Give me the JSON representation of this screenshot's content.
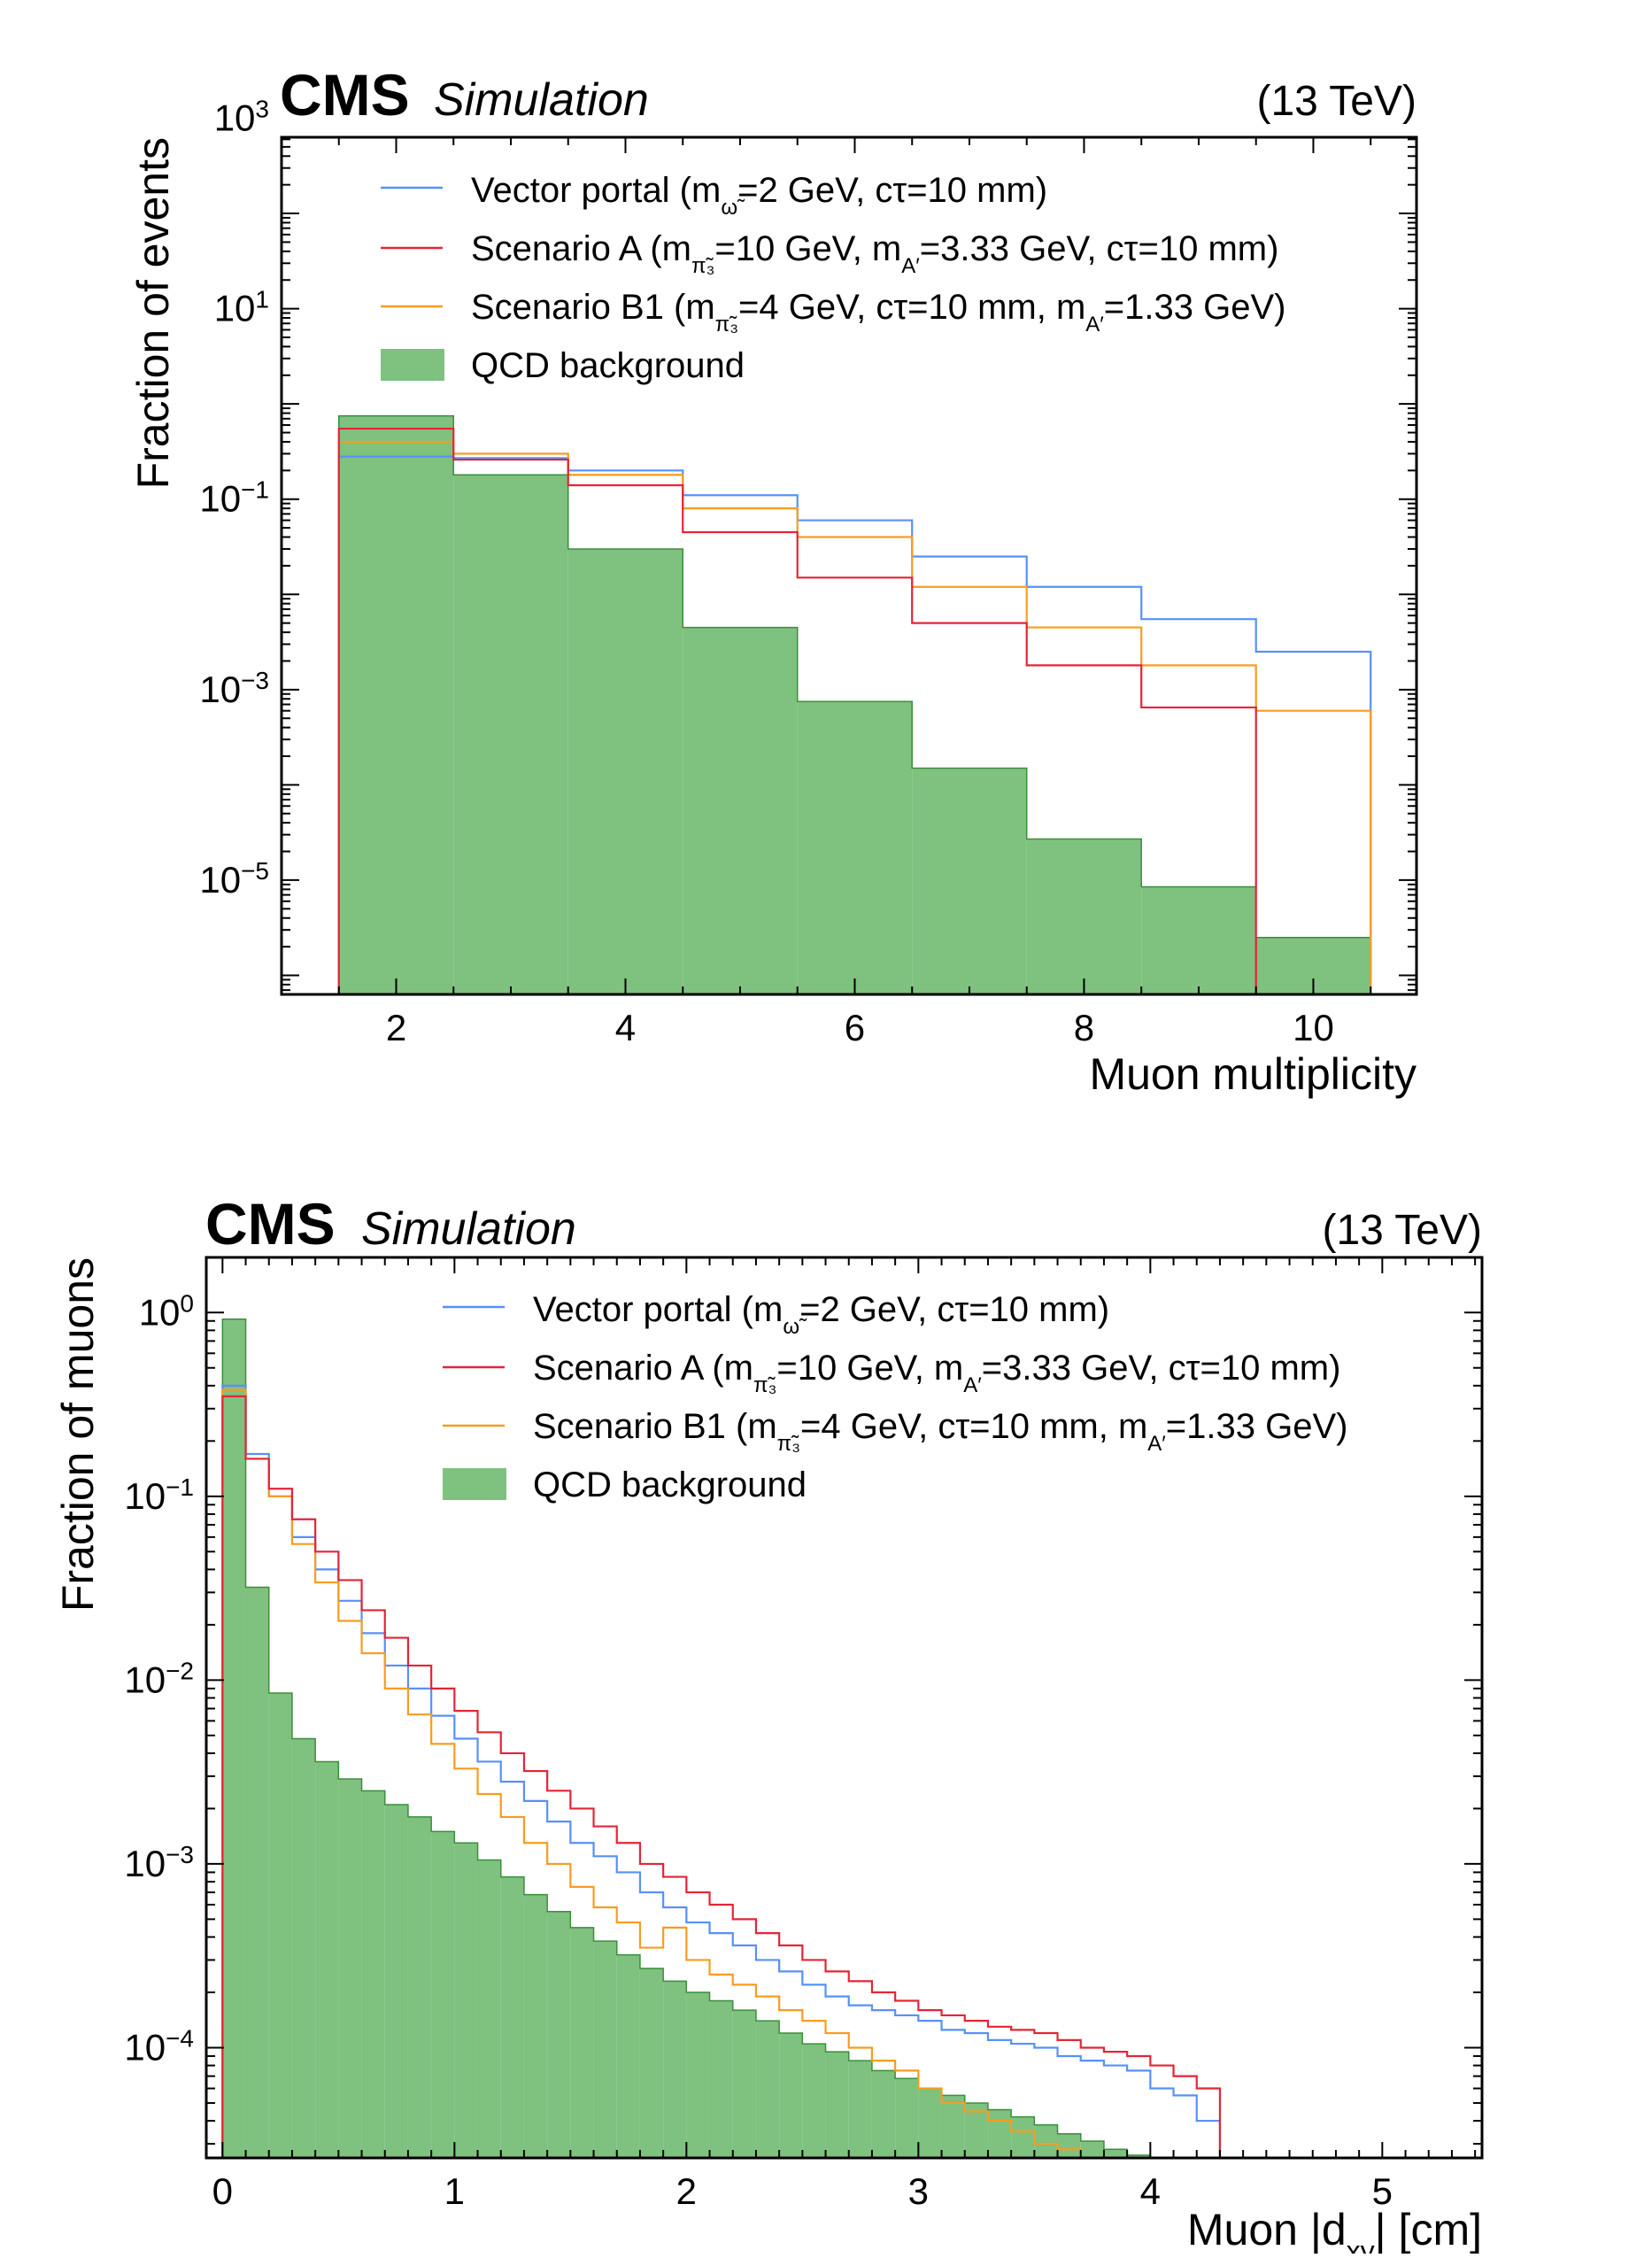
{
  "colors": {
    "vector": "#5790fc",
    "scenarioA": "#e42536",
    "scenarioB1": "#f89c20",
    "qcd": "#7fc17f",
    "qcd_edge": "#3a8f3a"
  },
  "chart_data": [
    {
      "type": "histogram",
      "scale": "log",
      "brand": "CMS",
      "brand_sub": "Simulation",
      "energy_label": "(13 TeV)",
      "xlabel": "Muon multiplicity",
      "ylabel": "Fraction of events",
      "xlim": [
        1,
        10.9
      ],
      "ylim_log10": [
        -6.2,
        2.8
      ],
      "x_ticks": [
        2,
        4,
        6,
        8,
        10
      ],
      "x_tick_labels": [
        "2",
        "4",
        "6",
        "8",
        "10"
      ],
      "y_ticks": [
        {
          "exp": 3,
          "base": "10",
          "sup": "3"
        },
        {
          "exp": 1,
          "base": "10",
          "sup": "1"
        },
        {
          "exp": -1,
          "base": "10",
          "sup": "−1"
        },
        {
          "exp": -3,
          "base": "10",
          "sup": "−3"
        },
        {
          "exp": -5,
          "base": "10",
          "sup": "−5"
        }
      ],
      "bin_edges": [
        1.5,
        2.5,
        3.5,
        4.5,
        5.5,
        6.5,
        7.5,
        8.5,
        9.5,
        10.5
      ],
      "series": [
        {
          "key": "vector",
          "name_parts": [
            "Vector portal (m",
            "ω̃",
            "=2 GeV, cτ=10 mm)"
          ],
          "kind": "step",
          "values": [
            0.28,
            0.27,
            0.2,
            0.11,
            0.06,
            0.025,
            0.012,
            0.0055,
            0.0025
          ]
        },
        {
          "key": "scenarioA",
          "name_parts": [
            "Scenario A (m",
            "π̃₃",
            "=10 GeV, m",
            "A′",
            "=3.33 GeV, cτ=10 mm)"
          ],
          "kind": "step",
          "values": [
            0.55,
            0.26,
            0.14,
            0.045,
            0.015,
            0.005,
            0.0018,
            0.00065,
            3e-07
          ]
        },
        {
          "key": "scenarioB1",
          "name_parts": [
            "Scenario B1 (m",
            "π̃₃",
            "=4 GeV, cτ=10 mm, m",
            "A′",
            "=1.33 GeV)"
          ],
          "kind": "step",
          "values": [
            0.4,
            0.3,
            0.18,
            0.08,
            0.04,
            0.012,
            0.0045,
            0.0018,
            0.0006
          ]
        },
        {
          "key": "qcd",
          "name_parts": [
            "QCD background"
          ],
          "kind": "fill",
          "values": [
            0.75,
            0.18,
            0.03,
            0.0045,
            0.00075,
            0.00015,
            2.7e-05,
            8.5e-06,
            2.5e-06
          ]
        }
      ]
    },
    {
      "type": "histogram",
      "scale": "log",
      "brand": "CMS",
      "brand_sub": "Simulation",
      "energy_label": "(13 TeV)",
      "xlabel_parts": [
        "Muon |d",
        "xy",
        "| [cm]"
      ],
      "ylabel": "Fraction of muons",
      "xlim": [
        -0.07,
        5.43
      ],
      "ylim_log10": [
        -4.6,
        0.3
      ],
      "x_ticks": [
        0,
        1,
        2,
        3,
        4,
        5
      ],
      "x_tick_labels": [
        "0",
        "1",
        "2",
        "3",
        "4",
        "5"
      ],
      "y_ticks": [
        {
          "exp": 0,
          "base": "10",
          "sup": "0"
        },
        {
          "exp": -1,
          "base": "10",
          "sup": "−1"
        },
        {
          "exp": -2,
          "base": "10",
          "sup": "−2"
        },
        {
          "exp": -3,
          "base": "10",
          "sup": "−3"
        },
        {
          "exp": -4,
          "base": "10",
          "sup": "−4"
        }
      ],
      "bin_start": 0,
      "bin_width": 0.1,
      "series": [
        {
          "key": "vector",
          "name_parts": [
            "Vector portal (m",
            "ω̃",
            "=2 GeV, cτ=10 mm)"
          ],
          "kind": "step",
          "values": [
            0.4,
            0.17,
            0.1,
            0.06,
            0.04,
            0.027,
            0.018,
            0.012,
            0.009,
            0.0064,
            0.0048,
            0.0036,
            0.0028,
            0.0022,
            0.0017,
            0.0013,
            0.0011,
            0.0009,
            0.0007,
            0.00058,
            0.00048,
            0.00042,
            0.00036,
            0.0003,
            0.00026,
            0.00022,
            0.00019,
            0.00017,
            0.00016,
            0.00015,
            0.00014,
            0.000125,
            0.00012,
            0.00011,
            0.000105,
            0.0001,
            9e-05,
            8.5e-05,
            8e-05,
            7.5e-05,
            6e-05,
            5.5e-05,
            4e-05
          ]
        },
        {
          "key": "scenarioA",
          "name_parts": [
            "Scenario A (m",
            "π̃₃",
            "=10 GeV, m",
            "A′",
            "=3.33 GeV, cτ=10 mm)"
          ],
          "kind": "step",
          "values": [
            0.35,
            0.16,
            0.11,
            0.075,
            0.05,
            0.035,
            0.024,
            0.017,
            0.012,
            0.009,
            0.0068,
            0.0052,
            0.004,
            0.0032,
            0.0025,
            0.002,
            0.0016,
            0.0013,
            0.001,
            0.00085,
            0.0007,
            0.0006,
            0.0005,
            0.00042,
            0.00036,
            0.0003,
            0.00026,
            0.00023,
            0.0002,
            0.00018,
            0.00016,
            0.00015,
            0.00014,
            0.00013,
            0.000125,
            0.00012,
            0.00011,
            0.0001,
            9.5e-05,
            9e-05,
            8e-05,
            7e-05,
            6e-05
          ]
        },
        {
          "key": "scenarioB1",
          "name_parts": [
            "Scenario B1 (m",
            "π̃₃",
            "=4 GeV, cτ=10 mm, m",
            "A′",
            "=1.33 GeV)"
          ],
          "kind": "step",
          "values": [
            0.38,
            0.16,
            0.1,
            0.055,
            0.034,
            0.021,
            0.014,
            0.009,
            0.0065,
            0.0045,
            0.0033,
            0.0024,
            0.0018,
            0.0013,
            0.001,
            0.00075,
            0.00058,
            0.00048,
            0.00035,
            0.00045,
            0.0003,
            0.00025,
            0.00022,
            0.00019,
            0.00016,
            0.00014,
            0.00012,
            0.0001,
            8.5e-05,
            7.5e-05,
            6e-05,
            5e-05,
            4.5e-05,
            4e-05,
            3.5e-05,
            3e-05,
            2.8e-05,
            2.5e-05,
            2.2e-05,
            2e-05,
            1.8e-05,
            1.6e-05,
            1.5e-05
          ]
        },
        {
          "key": "qcd",
          "name_parts": [
            "QCD background"
          ],
          "kind": "fill",
          "values": [
            0.92,
            0.032,
            0.0085,
            0.0048,
            0.0036,
            0.0029,
            0.0025,
            0.0021,
            0.0018,
            0.0015,
            0.0013,
            0.00105,
            0.00085,
            0.00068,
            0.00055,
            0.00045,
            0.00038,
            0.00032,
            0.00027,
            0.00023,
            0.0002,
            0.00018,
            0.00016,
            0.00014,
            0.00012,
            0.000105,
            9.5e-05,
            8.5e-05,
            7.5e-05,
            6.8e-05,
            6e-05,
            5.5e-05,
            5e-05,
            4.6e-05,
            4.2e-05,
            3.8e-05,
            3.4e-05,
            3.1e-05,
            2.8e-05,
            2.6e-05,
            2.4e-05,
            2.2e-05,
            2e-05
          ]
        }
      ]
    }
  ]
}
